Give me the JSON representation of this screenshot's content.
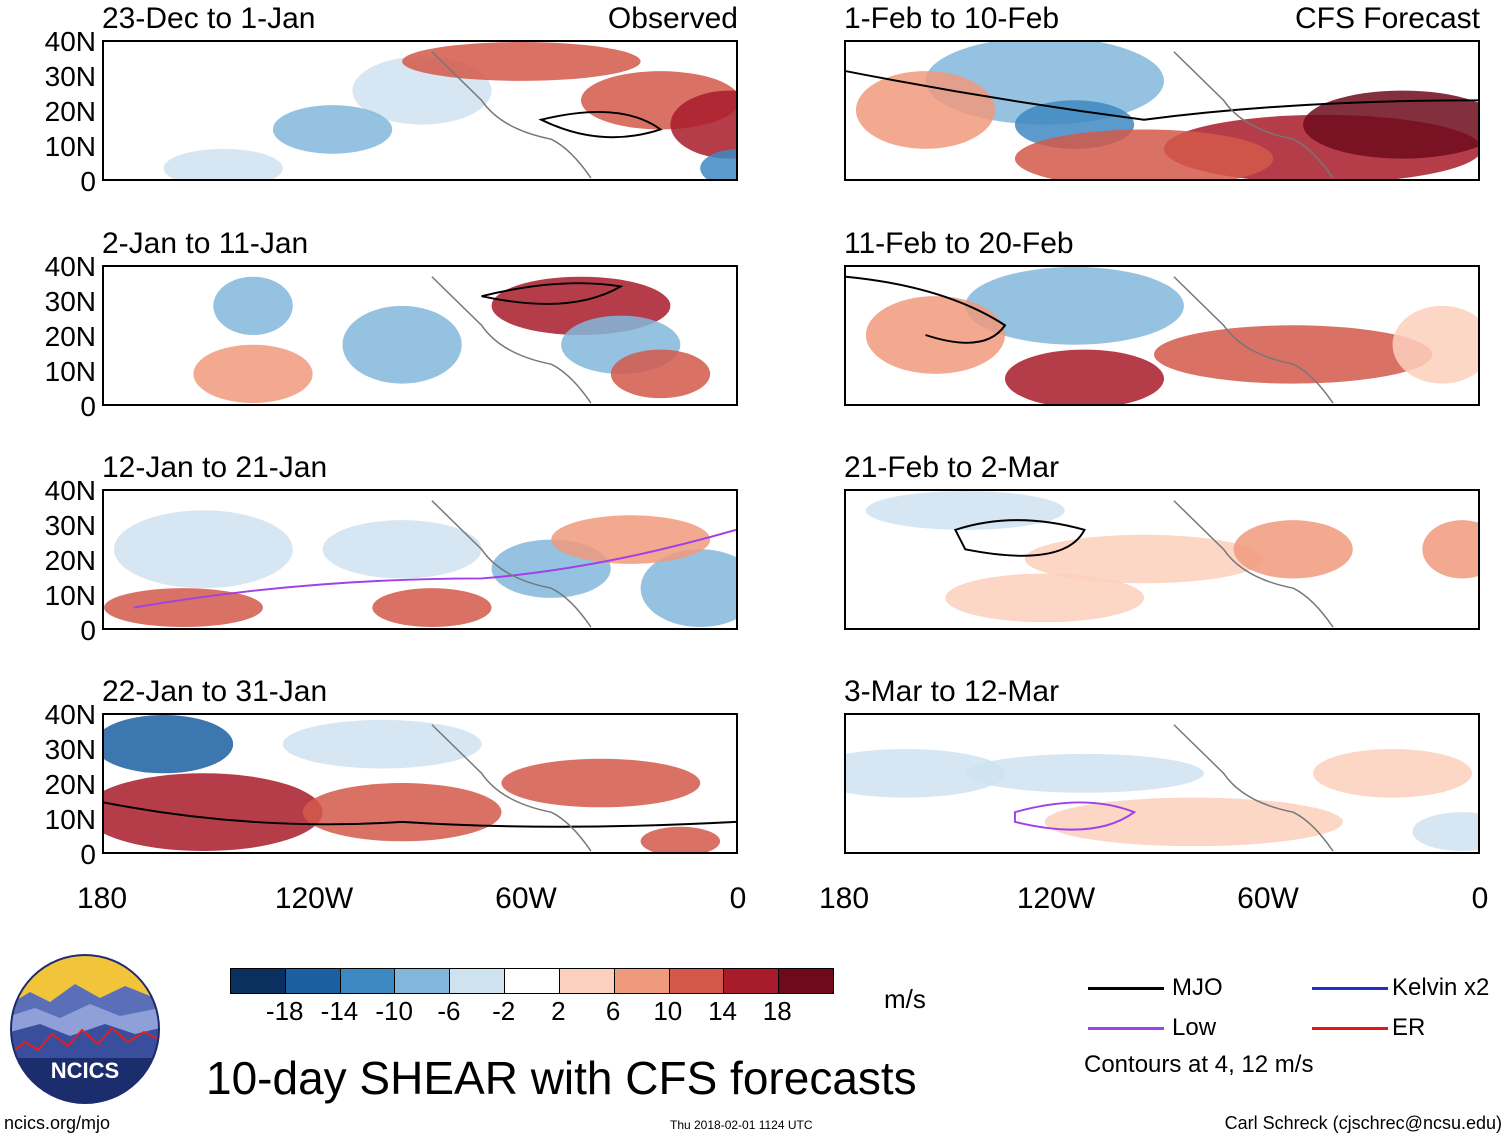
{
  "panels": [
    {
      "title": "23-Dec to 1-Jan",
      "tag": "Observed"
    },
    {
      "title": "1-Feb to 10-Feb",
      "tag": "CFS Forecast"
    },
    {
      "title": "2-Jan to 11-Jan",
      "tag": ""
    },
    {
      "title": "11-Feb to 20-Feb",
      "tag": ""
    },
    {
      "title": "12-Jan to 21-Jan",
      "tag": ""
    },
    {
      "title": "21-Feb to 2-Mar",
      "tag": ""
    },
    {
      "title": "22-Jan to 31-Jan",
      "tag": ""
    },
    {
      "title": "3-Mar to 12-Mar",
      "tag": ""
    }
  ],
  "lat_labels": [
    "40N",
    "30N",
    "20N",
    "10N",
    "0"
  ],
  "lon_labels": [
    "180",
    "120W",
    "60W",
    "0"
  ],
  "colorbar": {
    "ticks": [
      "-18",
      "-14",
      "-10",
      "-6",
      "-2",
      "2",
      "6",
      "10",
      "14",
      "18"
    ],
    "colors": [
      "#0b2f5e",
      "#1b5fa1",
      "#3e88c1",
      "#82b7db",
      "#cfe2f0",
      "#ffffff",
      "#fbd0bc",
      "#f09a7c",
      "#d4584a",
      "#a81b2a",
      "#6e0a1c"
    ],
    "units": "m/s"
  },
  "title": "10-day SHEAR with CFS forecasts",
  "legend": {
    "items": [
      {
        "label": "MJO",
        "color": "#000000"
      },
      {
        "label": "Kelvin x2",
        "color": "#1f2fd0"
      },
      {
        "label": "Low",
        "color": "#a040e8"
      },
      {
        "label": "ER",
        "color": "#e01818"
      }
    ],
    "note": "Contours at 4, 12 m/s"
  },
  "logo_text": "NCICS",
  "footer": {
    "left": "ncics.org/mjo",
    "middle": "Thu 2018-02-01 1124 UTC",
    "right": "Carl Schreck (cjschrec@ncsu.edu)"
  }
}
